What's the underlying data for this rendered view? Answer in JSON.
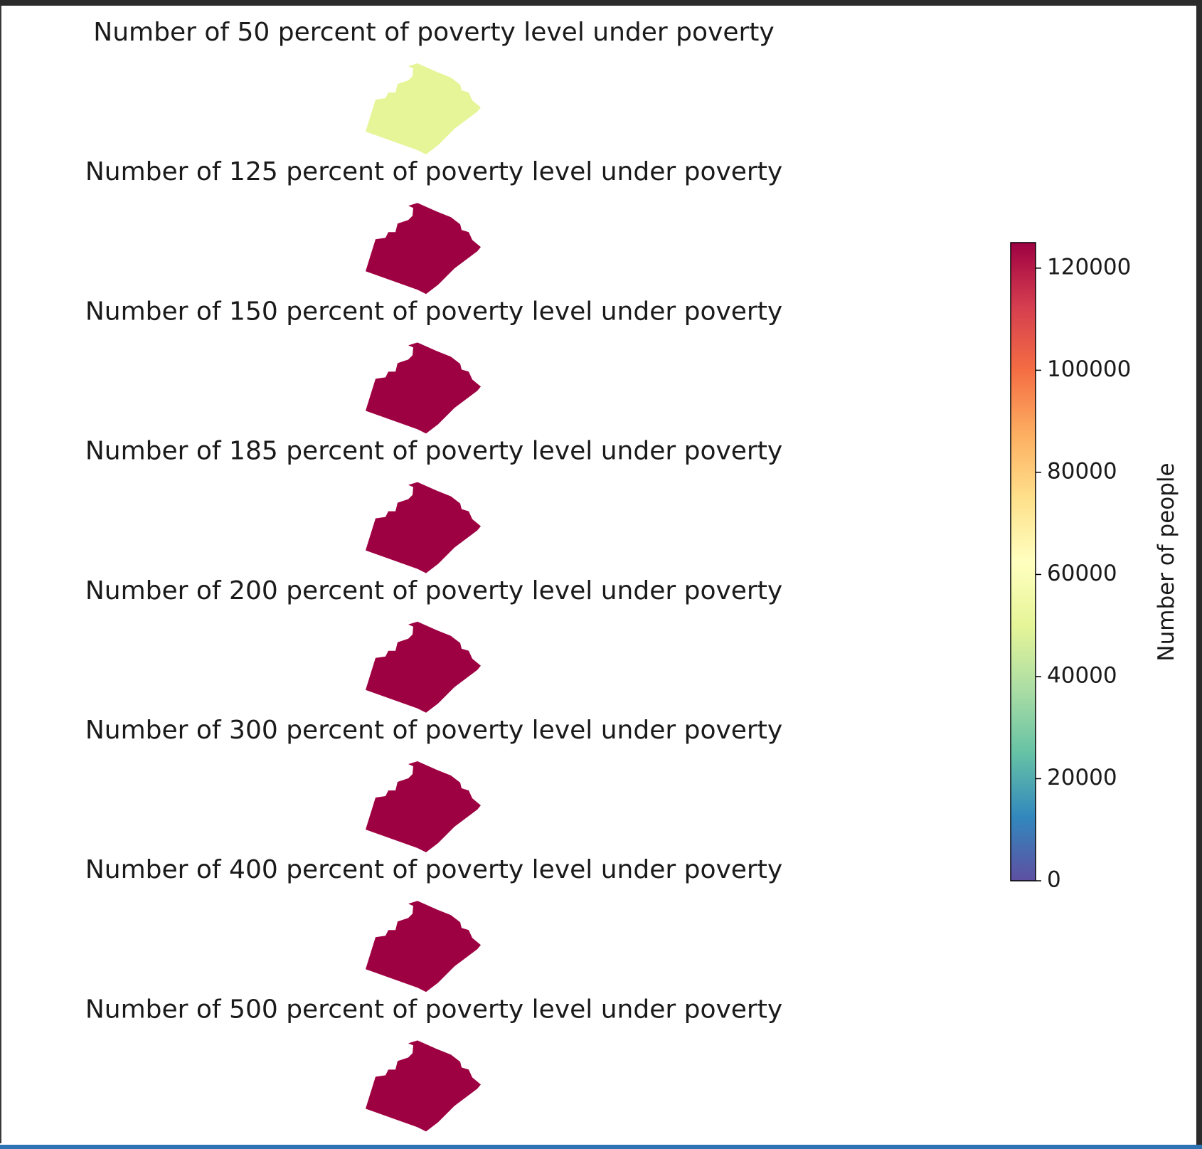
{
  "chart_data": {
    "type": "choropleth",
    "panels": [
      {
        "title": "Number of 50 percent of poverty level under poverty",
        "value": 50000
      },
      {
        "title": "Number of 125 percent of poverty level under poverty",
        "value": 125000
      },
      {
        "title": "Number of 150 percent of poverty level under poverty",
        "value": 125000
      },
      {
        "title": "Number of 185 percent of poverty level under poverty",
        "value": 125000
      },
      {
        "title": "Number of 200 percent of poverty level under poverty",
        "value": 125000
      },
      {
        "title": "Number of 300 percent of poverty level under poverty",
        "value": 125000
      },
      {
        "title": "Number of 400 percent of poverty level under poverty",
        "value": 125000
      },
      {
        "title": "Number of 500 percent of poverty level under poverty",
        "value": 125000
      }
    ],
    "colorbar": {
      "label": "Number of people",
      "colormap": "Spectral_r",
      "vmin": 0,
      "vmax": 125000,
      "ticks": [
        {
          "value": 0,
          "label": "0"
        },
        {
          "value": 20000,
          "label": "20000"
        },
        {
          "value": 40000,
          "label": "40000"
        },
        {
          "value": 60000,
          "label": "60000"
        },
        {
          "value": 80000,
          "label": "80000"
        },
        {
          "value": 100000,
          "label": "100000"
        },
        {
          "value": 120000,
          "label": "120000"
        }
      ]
    }
  }
}
